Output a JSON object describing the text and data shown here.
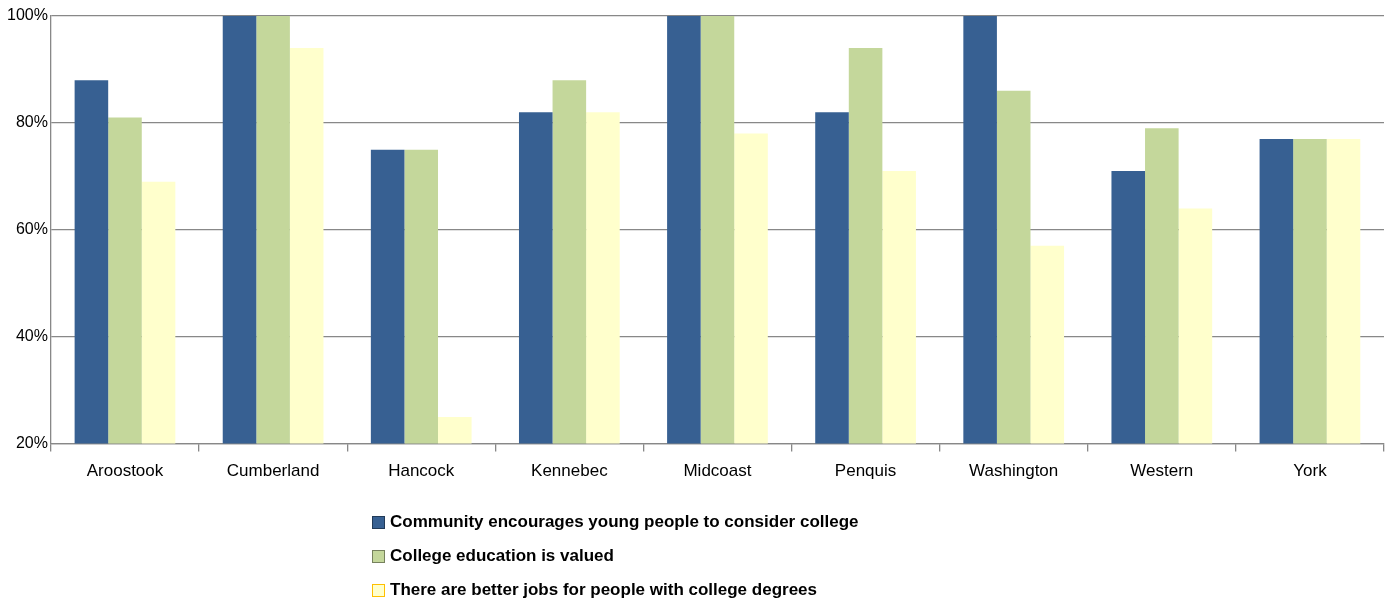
{
  "chart_data": {
    "type": "bar",
    "categories": [
      "Aroostook",
      "Cumberland",
      "Hancock",
      "Kennebec",
      "Midcoast",
      "Penquis",
      "Washington",
      "Western",
      "York"
    ],
    "series": [
      {
        "name": "Community encourages young people to consider college",
        "color": "#376092",
        "values": [
          88,
          100,
          75,
          82,
          100,
          82,
          100,
          71,
          77
        ]
      },
      {
        "name": "College education is valued",
        "color": "#c4d79b",
        "values": [
          81,
          100,
          75,
          88,
          100,
          94,
          86,
          79,
          77
        ]
      },
      {
        "name": "There are better jobs for people with college degrees",
        "color": "#ffffcc",
        "values": [
          69,
          94,
          25,
          82,
          78,
          71,
          57,
          64,
          77
        ]
      }
    ],
    "ylim": [
      20,
      100
    ],
    "yticks": [
      {
        "value": 20,
        "label": "20%"
      },
      {
        "value": 40,
        "label": "40%"
      },
      {
        "value": 60,
        "label": "60%"
      },
      {
        "value": 80,
        "label": "80%"
      },
      {
        "value": 100,
        "label": "100%"
      }
    ],
    "grid": "y",
    "legend": "bottom"
  }
}
